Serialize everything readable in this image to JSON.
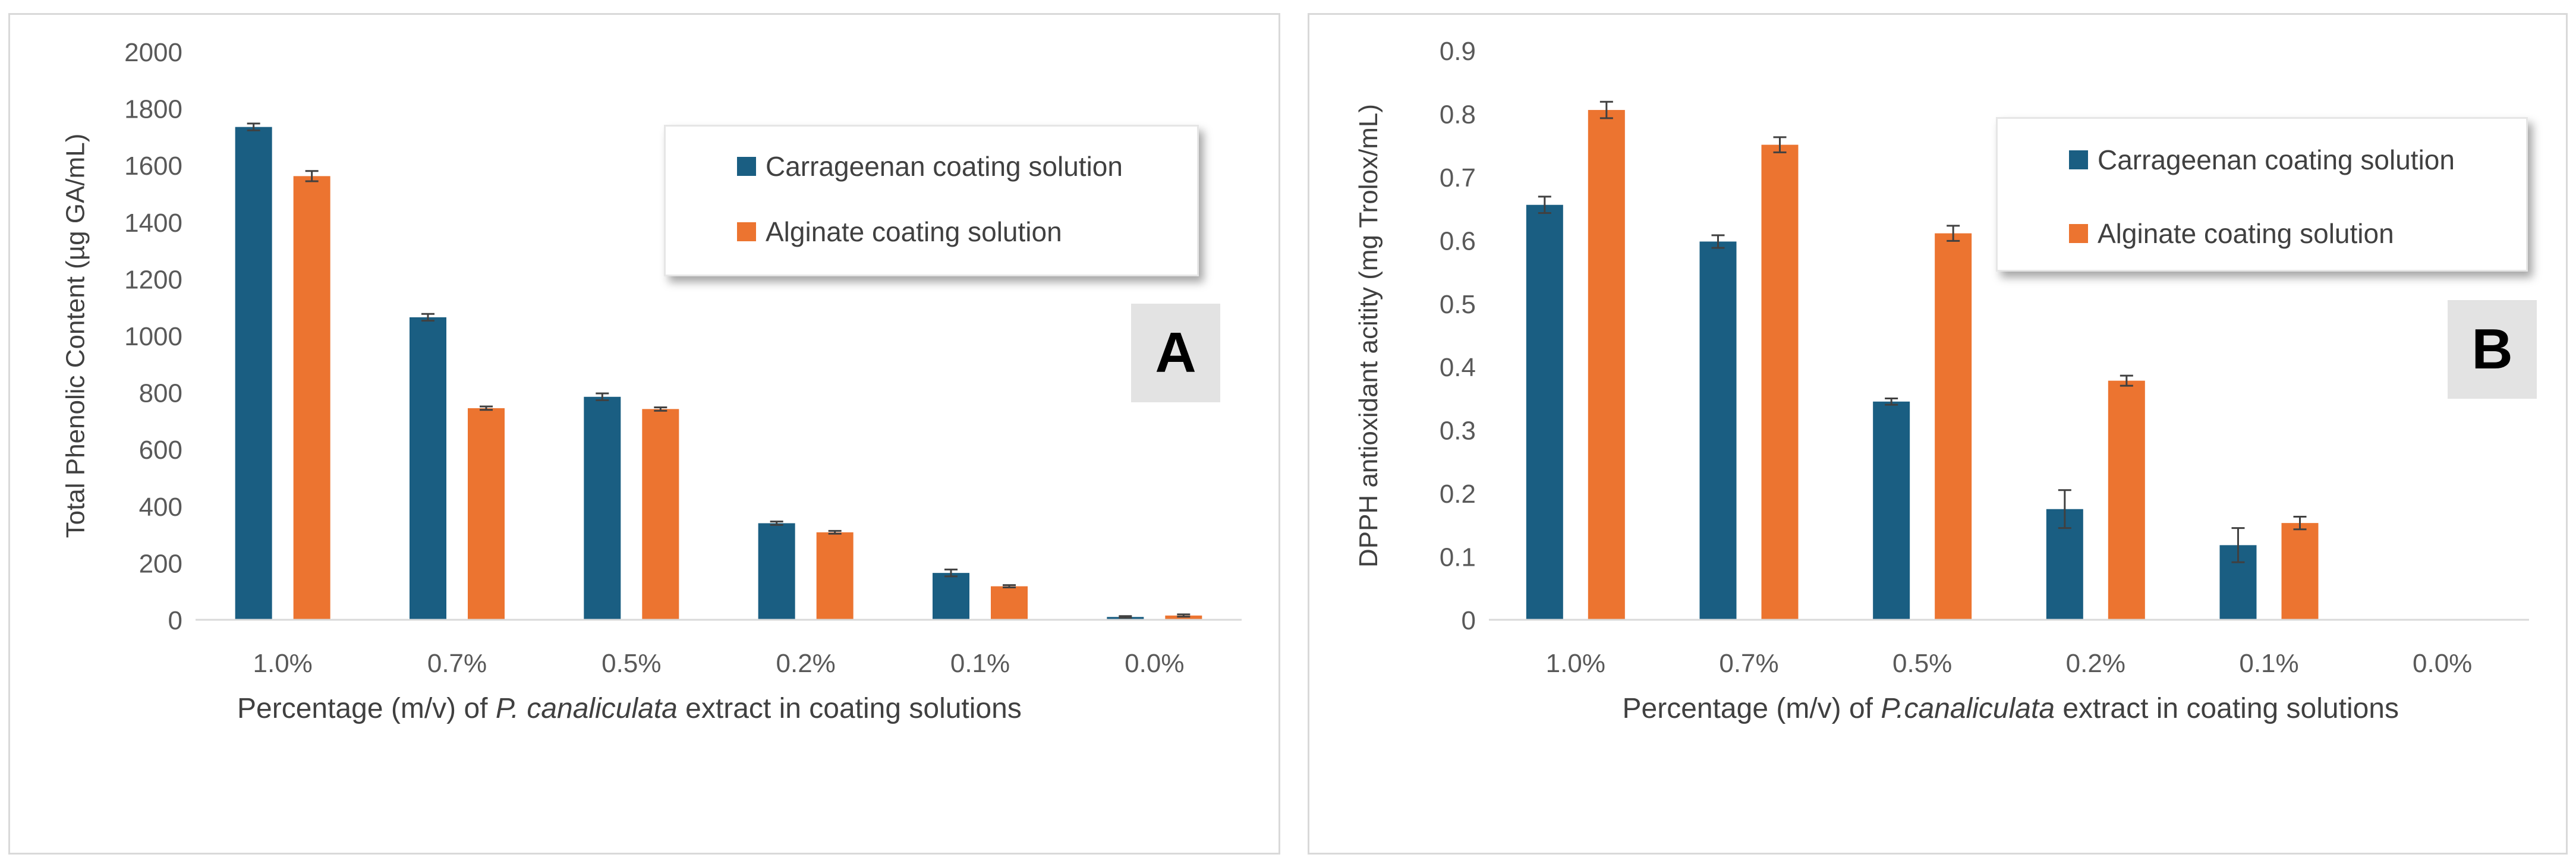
{
  "colors": {
    "carrageenan": "#1a5e82",
    "alginate": "#ec7430",
    "axis": "#d9d9d9",
    "text": "#595959",
    "error": "#404040"
  },
  "chart_data": [
    {
      "type": "bar",
      "panel_label": "A",
      "categories": [
        "1.0%",
        "0.7%",
        "0.5%",
        "0.2%",
        "0.1%",
        "0.0%"
      ],
      "series": [
        {
          "name": "Carrageenan coating solution",
          "values": [
            1735,
            1065,
            785,
            340,
            165,
            10
          ],
          "errors": [
            12,
            12,
            12,
            6,
            12,
            3
          ]
        },
        {
          "name": "Alginate coating solution",
          "values": [
            1562,
            745,
            742,
            308,
            118,
            15
          ],
          "errors": [
            18,
            6,
            6,
            5,
            4,
            4
          ]
        }
      ],
      "xlabel_prefix": "Percentage (m/v) of ",
      "xlabel_italic": "P. canaliculata",
      "xlabel_suffix": " extract in coating solutions",
      "ylabel": "Total Phenolic Content  (µg GA/mL)",
      "ylim": [
        0,
        2000
      ],
      "yticks": [
        "0",
        "200",
        "400",
        "600",
        "800",
        "1000",
        "1200",
        "1400",
        "1600",
        "1800",
        "2000"
      ],
      "legend": "top-right",
      "grid": false
    },
    {
      "type": "bar",
      "panel_label": "B",
      "categories": [
        "1.0%",
        "0.7%",
        "0.5%",
        "0.2%",
        "0.1%",
        "0.0%"
      ],
      "series": [
        {
          "name": "Carrageenan coating solution",
          "values": [
            0.656,
            0.598,
            0.345,
            0.175,
            0.118,
            0
          ],
          "errors": [
            0.013,
            0.01,
            0.005,
            0.03,
            0.027,
            0
          ]
        },
        {
          "name": "Alginate coating solution",
          "values": [
            0.806,
            0.751,
            0.611,
            0.378,
            0.153,
            0
          ],
          "errors": [
            0.013,
            0.012,
            0.012,
            0.008,
            0.01,
            0
          ]
        }
      ],
      "xlabel_prefix": "Percentage (m/v) of ",
      "xlabel_italic": "P.canaliculata",
      "xlabel_suffix": " extract in coating solutions",
      "ylabel": "DPPH antioxidant acitity (mg Trolox/mL)",
      "ylim": [
        0,
        0.9
      ],
      "yticks": [
        "0",
        "0.1",
        "0.2",
        "0.3",
        "0.4",
        "0.5",
        "0.6",
        "0.7",
        "0.8",
        "0.9"
      ],
      "legend": "top-right",
      "grid": false
    }
  ]
}
